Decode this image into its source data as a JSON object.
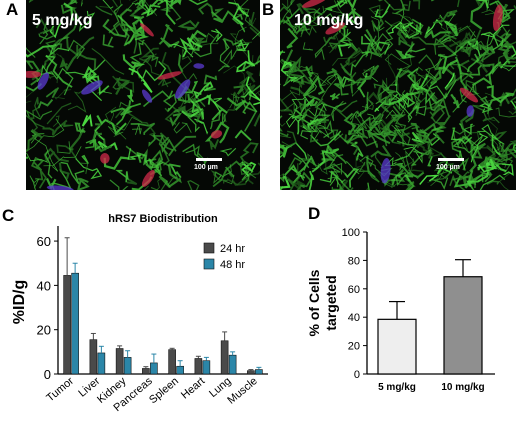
{
  "panels": {
    "A": {
      "letter": "A",
      "dose": "5 mg/kg",
      "scale": "100 µm"
    },
    "B": {
      "letter": "B",
      "dose": "10 mg/kg",
      "scale": "100 µm"
    },
    "C": {
      "letter": "C"
    },
    "D": {
      "letter": "D"
    }
  },
  "colors": {
    "bar_24hr": "#4a4a4a",
    "bar_48hr": "#2b86a8",
    "bar_5mgkg": "#eeeeee",
    "bar_10mgkg": "#8f8f8f"
  },
  "chart_data": [
    {
      "type": "bar",
      "title": "hRS7 Biodistribution",
      "ylabel": "%ID/g",
      "xlabel": "",
      "ylim": [
        0,
        65
      ],
      "yticks": [
        0,
        20,
        40,
        60
      ],
      "categories": [
        "Tumor",
        "Liver",
        "Kidney",
        "Pancreas",
        "Spleen",
        "Heart",
        "Lung",
        "Muscle"
      ],
      "series": [
        {
          "name": "24 hr",
          "values": [
            44.5,
            15.5,
            11.5,
            2.5,
            11,
            7,
            15,
            1.5
          ],
          "errors": [
            17,
            2.8,
            1.2,
            0.8,
            0.6,
            1,
            4,
            0.5
          ]
        },
        {
          "name": "48 hr",
          "values": [
            45.5,
            9.5,
            7.5,
            5,
            3.5,
            6,
            8.5,
            2
          ],
          "errors": [
            4.5,
            3,
            3,
            4,
            2.5,
            1.5,
            1.5,
            1
          ]
        }
      ],
      "legend": "top-right"
    },
    {
      "type": "bar",
      "title": "",
      "ylabel": "% of Cells targeted",
      "xlabel": "",
      "ylim": [
        0,
        100
      ],
      "yticks": [
        0,
        20,
        40,
        60,
        80,
        100
      ],
      "categories": [
        "5 mg/kg",
        "10 mg/kg"
      ],
      "values": [
        38.5,
        68.5
      ],
      "errors": [
        12.5,
        12
      ]
    }
  ]
}
